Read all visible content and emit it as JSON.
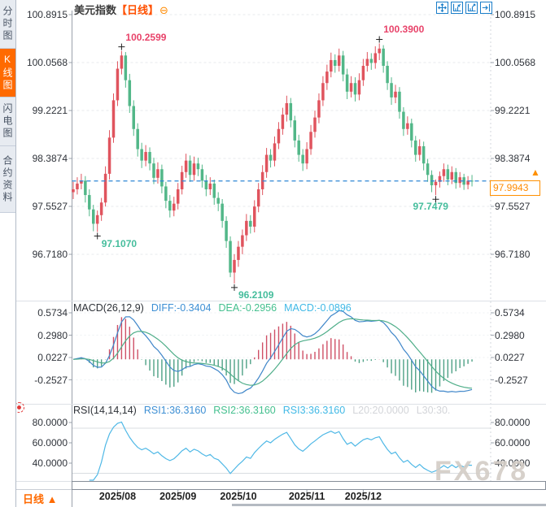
{
  "header": {
    "symbol": "美元指数",
    "period_tag": "【日线】",
    "collapse_icon": "⊖"
  },
  "sidebar": {
    "tabs": [
      {
        "label": "分时图",
        "active": false
      },
      {
        "label": "K线图",
        "active": true
      },
      {
        "label": "闪电图",
        "active": false
      },
      {
        "label": "合约资料",
        "active": false
      }
    ]
  },
  "toolbar": {
    "buttons": [
      {
        "name": "pan-tool"
      },
      {
        "name": "zoom-out"
      },
      {
        "name": "zoom-in"
      },
      {
        "name": "goto-latest"
      }
    ]
  },
  "main_chart": {
    "current_price_label": "97.9943",
    "arrow_glyph": "▲",
    "watermark": "FX678"
  },
  "bottom": {
    "period_label": "日线",
    "period_arrow": "▲"
  },
  "palette": {
    "up": "#e0545e",
    "down": "#52b788",
    "hist_up": "#cf5066",
    "hist_down": "#4ea186",
    "diff_line": "#3f86c9",
    "dea_line": "#4fae89",
    "rsi_line": "#4fb8e6",
    "high_label": "#e8436a",
    "low_label": "#45bd9c",
    "price_line": "#2e86d5",
    "accent_orange": "#ff8a00",
    "selected_tab": "#ff6600"
  },
  "chart_data": {
    "type": "candlestick",
    "title": "美元指数 日线",
    "y_axis_ticks": [
      100.8915,
      100.0568,
      99.2221,
      98.3874,
      97.5527,
      96.718
    ],
    "y_axis_tick_labels": [
      "100.8915",
      "100.0568",
      "99.2221",
      "98.3874",
      "97.5527",
      "96.7180"
    ],
    "x_axis_ticks": [
      {
        "label": "2025/08",
        "index": 11
      },
      {
        "label": "2025/09",
        "index": 26
      },
      {
        "label": "2025/10",
        "index": 41
      },
      {
        "label": "2025/11",
        "index": 58
      },
      {
        "label": "2025/12",
        "index": 72
      }
    ],
    "current_price": 97.9943,
    "annotations": [
      {
        "index": 12,
        "price": 100.2599,
        "label": "100.2599",
        "kind": "high"
      },
      {
        "index": 76,
        "price": 100.39,
        "label": "100.3900",
        "kind": "high"
      },
      {
        "index": 6,
        "price": 97.107,
        "label": "97.1070",
        "kind": "low"
      },
      {
        "index": 40,
        "price": 96.2109,
        "label": "96.2109",
        "kind": "low"
      },
      {
        "index": 90,
        "price": 97.7479,
        "label": "97.7479",
        "kind": "low",
        "align": "center"
      }
    ],
    "candles_ohlc": [
      [
        97.8,
        97.98,
        97.68,
        97.85
      ],
      [
        97.85,
        98.06,
        97.76,
        97.95
      ],
      [
        97.95,
        98.12,
        97.85,
        98.0
      ],
      [
        98.0,
        98.08,
        97.62,
        97.75
      ],
      [
        97.75,
        97.85,
        97.38,
        97.5
      ],
      [
        97.5,
        97.58,
        97.12,
        97.25
      ],
      [
        97.25,
        97.48,
        97.107,
        97.4
      ],
      [
        97.4,
        97.7,
        97.3,
        97.62
      ],
      [
        97.62,
        98.25,
        97.55,
        98.12
      ],
      [
        98.12,
        98.88,
        98.02,
        98.75
      ],
      [
        98.75,
        99.52,
        98.66,
        99.4
      ],
      [
        99.4,
        100.08,
        99.3,
        99.95
      ],
      [
        99.95,
        100.2599,
        99.85,
        100.18
      ],
      [
        100.18,
        100.24,
        99.62,
        99.75
      ],
      [
        99.75,
        99.86,
        99.18,
        99.3
      ],
      [
        99.3,
        99.4,
        98.78,
        98.9
      ],
      [
        98.9,
        99.0,
        98.42,
        98.55
      ],
      [
        98.55,
        98.66,
        98.22,
        98.35
      ],
      [
        98.35,
        98.62,
        98.25,
        98.5
      ],
      [
        98.5,
        98.58,
        98.18,
        98.3
      ],
      [
        98.3,
        98.4,
        97.94,
        98.05
      ],
      [
        98.05,
        98.32,
        97.95,
        98.2
      ],
      [
        98.2,
        98.28,
        97.78,
        97.9
      ],
      [
        97.9,
        97.98,
        97.52,
        97.65
      ],
      [
        97.65,
        97.75,
        97.36,
        97.48
      ],
      [
        97.48,
        97.72,
        97.38,
        97.6
      ],
      [
        97.6,
        97.96,
        97.5,
        97.85
      ],
      [
        97.85,
        98.26,
        97.76,
        98.15
      ],
      [
        98.15,
        98.47,
        98.05,
        98.35
      ],
      [
        98.35,
        98.44,
        97.98,
        98.1
      ],
      [
        98.1,
        98.42,
        98.0,
        98.3
      ],
      [
        98.3,
        98.4,
        98.08,
        98.2
      ],
      [
        98.2,
        98.28,
        97.88,
        98.0
      ],
      [
        98.0,
        98.1,
        97.73,
        97.85
      ],
      [
        97.85,
        98.06,
        97.75,
        97.95
      ],
      [
        97.95,
        98.02,
        97.58,
        97.7
      ],
      [
        97.7,
        97.8,
        97.47,
        97.6
      ],
      [
        97.6,
        97.68,
        97.18,
        97.3
      ],
      [
        97.3,
        97.38,
        96.83,
        96.95
      ],
      [
        96.95,
        97.03,
        96.32,
        96.4
      ],
      [
        96.4,
        96.72,
        96.2109,
        96.62
      ],
      [
        96.62,
        96.95,
        96.5,
        96.85
      ],
      [
        96.85,
        97.15,
        96.72,
        97.05
      ],
      [
        97.05,
        97.42,
        96.95,
        97.3
      ],
      [
        97.3,
        97.4,
        97.08,
        97.2
      ],
      [
        97.2,
        97.66,
        97.1,
        97.55
      ],
      [
        97.55,
        97.96,
        97.45,
        97.85
      ],
      [
        97.85,
        98.27,
        97.75,
        98.15
      ],
      [
        98.15,
        98.57,
        98.05,
        98.45
      ],
      [
        98.45,
        98.55,
        98.23,
        98.35
      ],
      [
        98.35,
        98.77,
        98.25,
        98.65
      ],
      [
        98.65,
        99.02,
        98.55,
        98.9
      ],
      [
        98.9,
        99.27,
        98.8,
        99.15
      ],
      [
        99.15,
        99.48,
        99.03,
        99.35
      ],
      [
        99.35,
        99.44,
        98.93,
        99.05
      ],
      [
        99.05,
        99.13,
        98.58,
        98.7
      ],
      [
        98.7,
        98.8,
        98.33,
        98.45
      ],
      [
        98.45,
        98.55,
        98.17,
        98.3
      ],
      [
        98.3,
        98.67,
        98.2,
        98.55
      ],
      [
        98.55,
        98.97,
        98.45,
        98.85
      ],
      [
        98.85,
        99.22,
        98.75,
        99.1
      ],
      [
        99.1,
        99.52,
        99.0,
        99.4
      ],
      [
        99.4,
        99.82,
        99.3,
        99.7
      ],
      [
        99.7,
        100.02,
        99.58,
        99.9
      ],
      [
        99.9,
        100.23,
        99.8,
        100.1
      ],
      [
        100.1,
        100.2,
        99.88,
        100.0
      ],
      [
        100.0,
        100.3,
        99.9,
        100.18
      ],
      [
        100.18,
        100.26,
        99.73,
        99.85
      ],
      [
        99.85,
        99.95,
        99.42,
        99.55
      ],
      [
        99.55,
        99.82,
        99.45,
        99.7
      ],
      [
        99.7,
        99.8,
        99.38,
        99.5
      ],
      [
        99.5,
        99.87,
        99.4,
        99.75
      ],
      [
        99.75,
        100.12,
        99.65,
        100.0
      ],
      [
        100.0,
        100.24,
        99.9,
        100.12
      ],
      [
        100.12,
        100.22,
        99.93,
        100.05
      ],
      [
        100.05,
        100.34,
        99.95,
        100.22
      ],
      [
        100.22,
        100.39,
        100.1,
        100.3
      ],
      [
        100.3,
        100.36,
        99.88,
        100.0
      ],
      [
        100.0,
        100.08,
        99.58,
        99.7
      ],
      [
        99.7,
        99.8,
        99.32,
        99.45
      ],
      [
        99.45,
        99.67,
        99.35,
        99.55
      ],
      [
        99.55,
        99.63,
        99.08,
        99.2
      ],
      [
        99.2,
        99.28,
        98.78,
        98.9
      ],
      [
        98.9,
        99.12,
        98.8,
        99.0
      ],
      [
        99.0,
        99.08,
        98.58,
        98.7
      ],
      [
        98.7,
        98.78,
        98.33,
        98.45
      ],
      [
        98.45,
        98.72,
        98.35,
        98.6
      ],
      [
        98.6,
        98.68,
        98.18,
        98.3
      ],
      [
        98.3,
        98.38,
        97.98,
        98.1
      ],
      [
        98.1,
        98.18,
        97.8,
        97.92
      ],
      [
        97.92,
        98.02,
        97.7479,
        97.98
      ],
      [
        97.98,
        98.16,
        97.88,
        98.08
      ],
      [
        98.08,
        98.3,
        97.98,
        98.2
      ],
      [
        98.2,
        98.28,
        97.92,
        98.02
      ],
      [
        98.02,
        98.25,
        97.94,
        98.15
      ],
      [
        98.15,
        98.22,
        97.86,
        97.96
      ],
      [
        97.96,
        98.15,
        97.88,
        98.06
      ],
      [
        98.06,
        98.12,
        97.84,
        97.93
      ],
      [
        97.93,
        98.08,
        97.85,
        98.0
      ],
      [
        98.0,
        98.1,
        97.9,
        97.9943
      ]
    ],
    "indicators": {
      "macd": {
        "y_tick_labels": [
          "0.5734",
          "0.2980",
          "0.0227",
          "-0.2527"
        ],
        "y_ticks": [
          0.5734,
          0.298,
          0.0227,
          -0.2527
        ],
        "legend": [
          {
            "text": "MACD(26,12,9)",
            "color": "#2e3238"
          },
          {
            "text": "DIFF:-0.3404",
            "color": "#3d8fd4"
          },
          {
            "text": "DEA:-0.2956",
            "color": "#45c08f"
          },
          {
            "text": "MACD:-0.0896",
            "color": "#41b9e6"
          }
        ]
      },
      "rsi": {
        "y_tick_labels": [
          "80.0000",
          "60.0000",
          "40.0000"
        ],
        "y_ticks": [
          80,
          60,
          40
        ],
        "legend": [
          {
            "text": "RSI(14,14,14)",
            "color": "#2e3238"
          },
          {
            "text": "RSI1:36.3160",
            "color": "#3d8fd4"
          },
          {
            "text": "RSI2:36.3160",
            "color": "#45c08f"
          },
          {
            "text": "RSI3:36.3160",
            "color": "#41b9e6"
          },
          {
            "text": "L20:20.0000",
            "color": "#d3d5d9"
          },
          {
            "text": "L30:30.",
            "color": "#d3d5d9"
          }
        ]
      }
    }
  }
}
